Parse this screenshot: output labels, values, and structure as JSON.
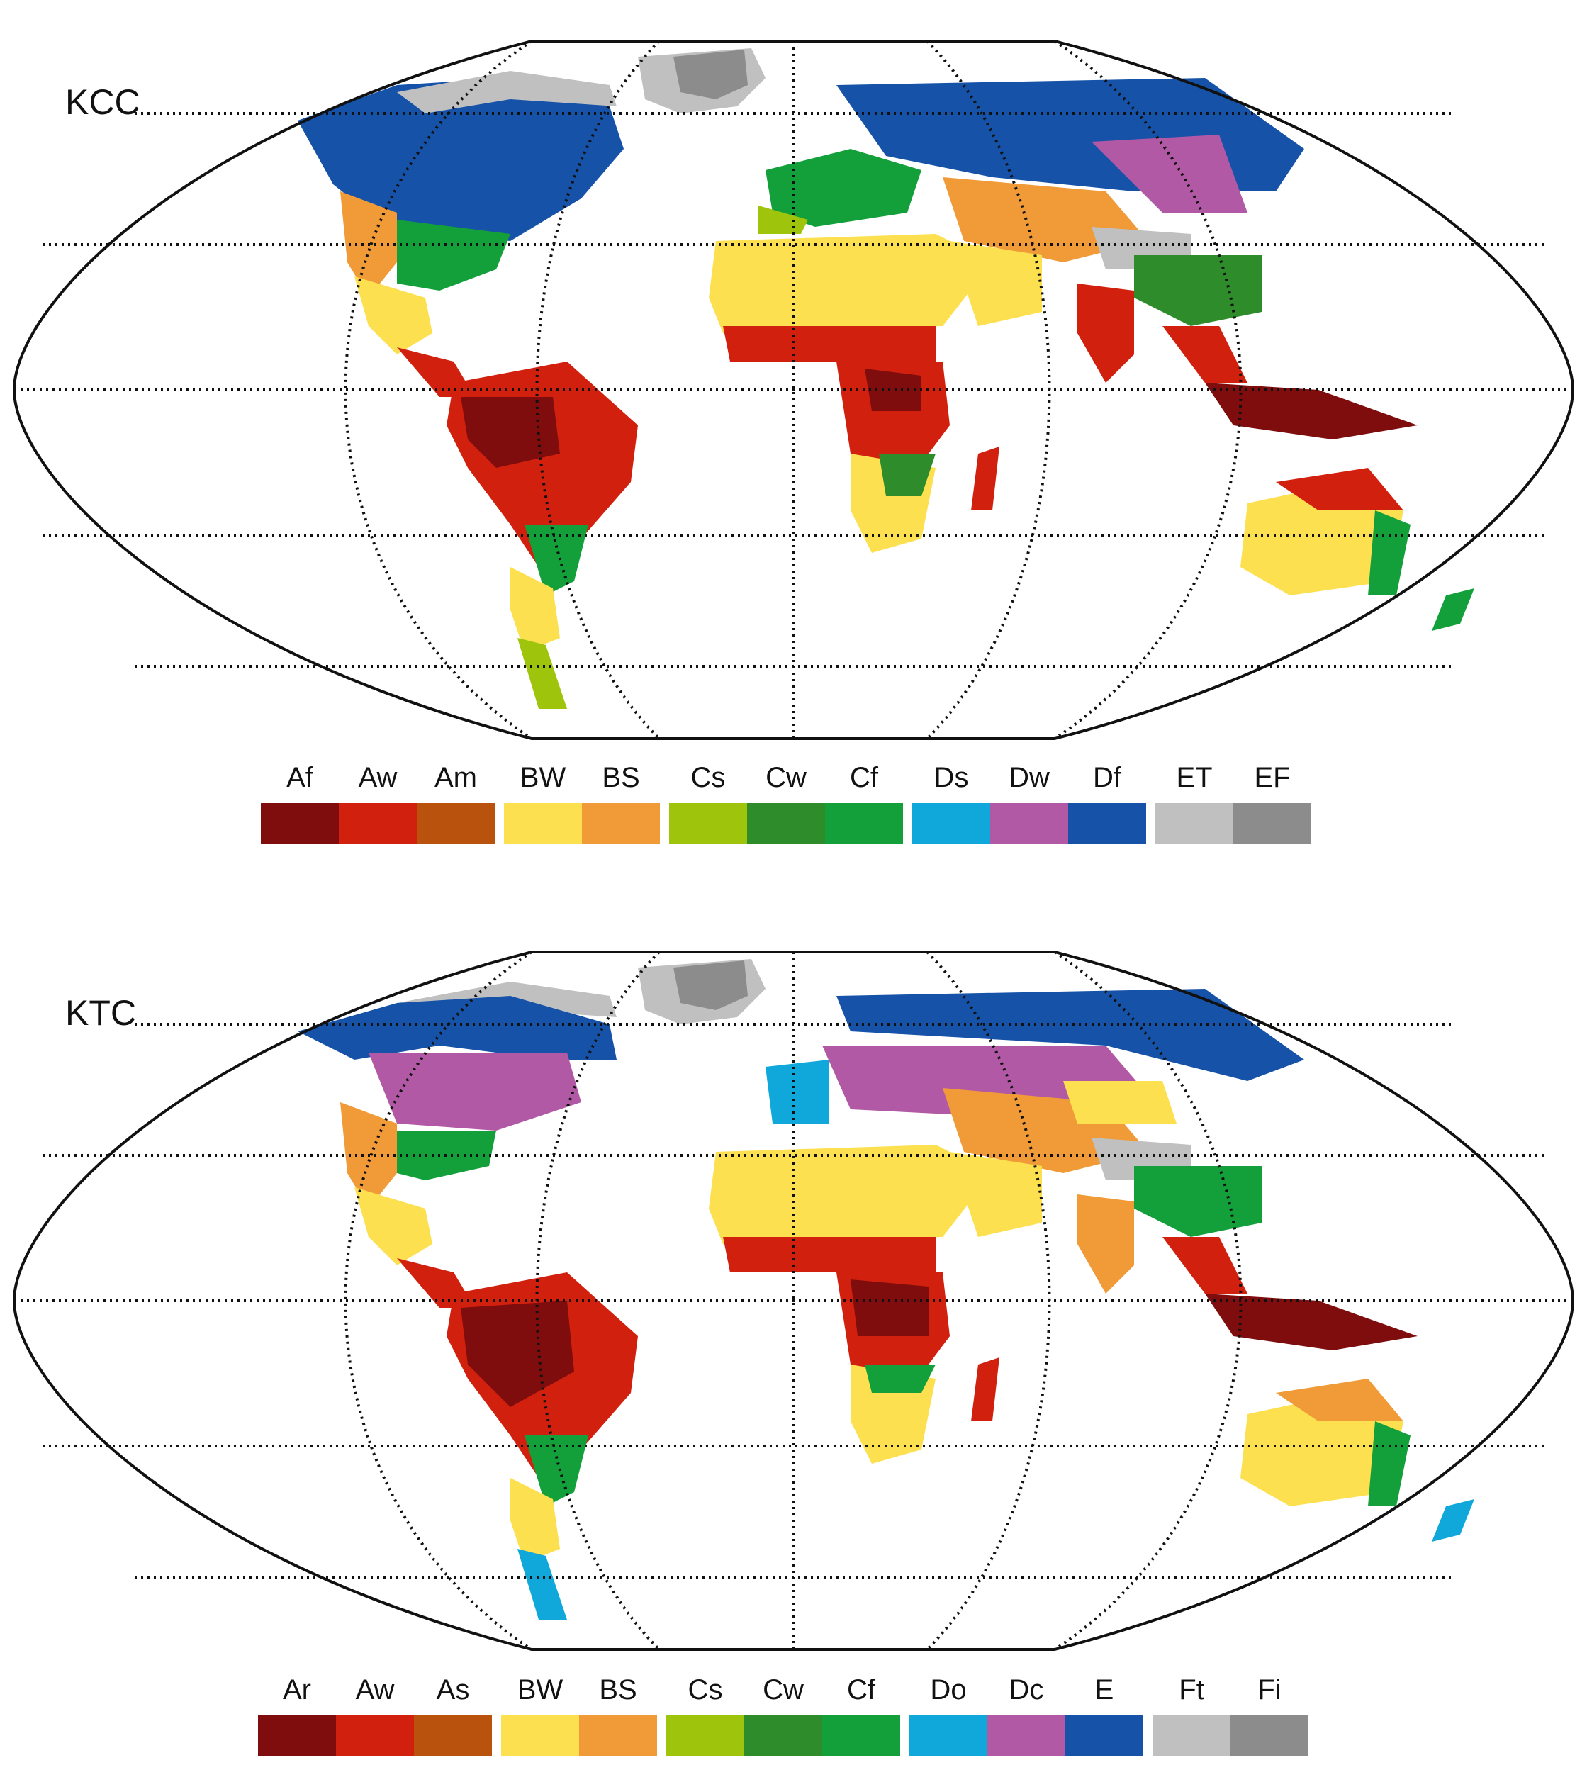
{
  "maps": [
    {
      "title": "KCC",
      "legend": [
        {
          "code": "Af",
          "color": "#7f0d0d"
        },
        {
          "code": "Aw",
          "color": "#d2200f"
        },
        {
          "code": "Am",
          "color": "#b8520c"
        },
        {
          "code": "BW",
          "color": "#fde050"
        },
        {
          "code": "BS",
          "color": "#f09a38"
        },
        {
          "code": "Cs",
          "color": "#9ec40c"
        },
        {
          "code": "Cw",
          "color": "#2f8c2a"
        },
        {
          "code": "Cf",
          "color": "#13a03a"
        },
        {
          "code": "Ds",
          "color": "#10a8da"
        },
        {
          "code": "Dw",
          "color": "#b259a6"
        },
        {
          "code": "Df",
          "color": "#1552a8"
        },
        {
          "code": "ET",
          "color": "#c0c0c0"
        },
        {
          "code": "EF",
          "color": "#8c8c8c"
        }
      ]
    },
    {
      "title": "KTC",
      "legend": [
        {
          "code": "Ar",
          "color": "#7f0d0d"
        },
        {
          "code": "Aw",
          "color": "#d2200f"
        },
        {
          "code": "As",
          "color": "#b8520c"
        },
        {
          "code": "BW",
          "color": "#fde050"
        },
        {
          "code": "BS",
          "color": "#f09a38"
        },
        {
          "code": "Cs",
          "color": "#9ec40c"
        },
        {
          "code": "Cw",
          "color": "#2f8c2a"
        },
        {
          "code": "Cf",
          "color": "#13a03a"
        },
        {
          "code": "Do",
          "color": "#10a8da"
        },
        {
          "code": "Dc",
          "color": "#b259a6"
        },
        {
          "code": "E",
          "color": "#1552a8"
        },
        {
          "code": "Ft",
          "color": "#c0c0c0"
        },
        {
          "code": "Fi",
          "color": "#8c8c8c"
        }
      ]
    }
  ]
}
